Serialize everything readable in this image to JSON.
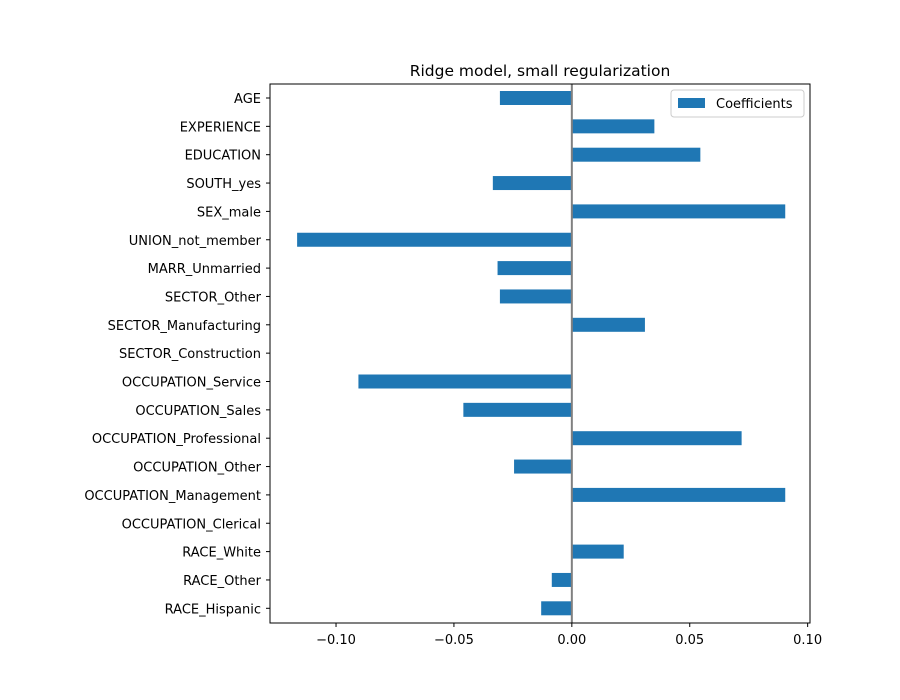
{
  "chart_data": {
    "type": "bar",
    "orientation": "horizontal",
    "title": "Ridge model, small regularization",
    "xlabel": "",
    "ylabel": "",
    "xlim": [
      -0.128,
      0.101
    ],
    "xticks": [
      -0.1,
      -0.05,
      0.0,
      0.05,
      0.1
    ],
    "xtick_labels": [
      "−0.10",
      "−0.05",
      "0.00",
      "0.05",
      "0.10"
    ],
    "categories": [
      "AGE",
      "EXPERIENCE",
      "EDUCATION",
      "SOUTH_yes",
      "SEX_male",
      "UNION_not_member",
      "MARR_Unmarried",
      "SECTOR_Other",
      "SECTOR_Manufacturing",
      "SECTOR_Construction",
      "OCCUPATION_Service",
      "OCCUPATION_Sales",
      "OCCUPATION_Professional",
      "OCCUPATION_Other",
      "OCCUPATION_Management",
      "OCCUPATION_Clerical",
      "RACE_White",
      "RACE_Other",
      "RACE_Hispanic"
    ],
    "series": [
      {
        "name": "Coefficients",
        "color": "#1f77b4",
        "values": [
          -0.0305,
          0.035,
          0.0545,
          -0.0335,
          0.0905,
          -0.1165,
          -0.0315,
          -0.0305,
          0.031,
          0.0,
          -0.0905,
          -0.046,
          0.072,
          -0.0245,
          0.0905,
          0.0,
          0.022,
          -0.0085,
          -0.013
        ]
      }
    ],
    "zero_line_color": "#808080",
    "grid": false,
    "legend_position": "top-right"
  }
}
